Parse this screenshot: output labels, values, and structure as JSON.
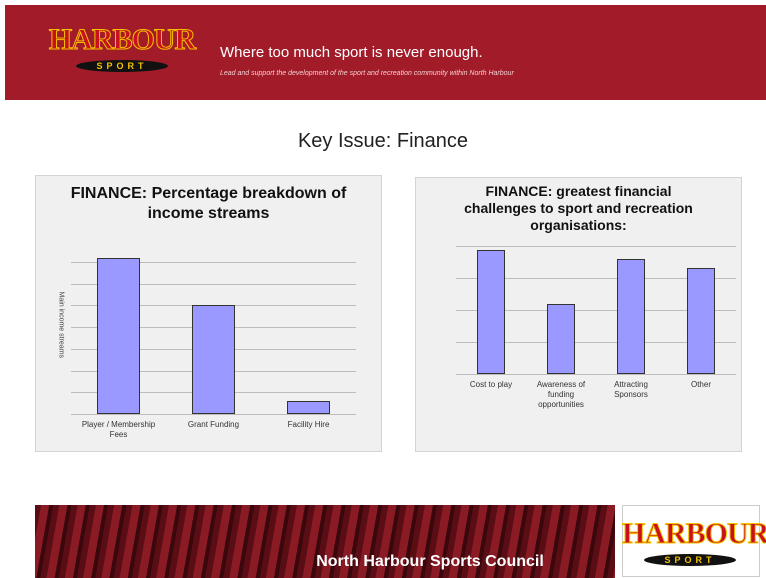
{
  "header": {
    "logo": {
      "name": "HARBOUR",
      "sub": "SPORT"
    },
    "tagline": "Where too much sport is never enough.",
    "subline": "Lead and support the development of the sport and recreation community within North Harbour"
  },
  "slide_title": "Key Issue: Finance",
  "chart_data": [
    {
      "type": "bar",
      "title": "FINANCE: Percentage breakdown of income streams",
      "y_label": "Main income streams",
      "categories": [
        "Player / Membership Fees",
        "Grant Funding",
        "Facility Hire"
      ],
      "values": [
        7.2,
        5,
        0.6
      ],
      "color": "#9999ff",
      "ylim": [
        0,
        7.5
      ],
      "yticks": [
        0,
        1,
        2,
        3,
        4,
        5,
        6,
        7
      ],
      "grid": true
    },
    {
      "type": "bar",
      "title": "FINANCE: greatest financial challenges to sport and recreation organisations:",
      "categories": [
        "Cost to play",
        "Awareness of funding opportunities",
        "Attracting Sponsors",
        "Other"
      ],
      "values": [
        3.86,
        2.19,
        3.58,
        3.3
      ],
      "color": "#9999ff",
      "ylim": [
        0,
        4
      ],
      "yticks": [
        0,
        1,
        2,
        3,
        4
      ],
      "grid": true
    }
  ],
  "footer": {
    "text": "North Harbour Sports Council",
    "logo": {
      "name": "HARBOUR",
      "sub": "SPORT"
    }
  }
}
